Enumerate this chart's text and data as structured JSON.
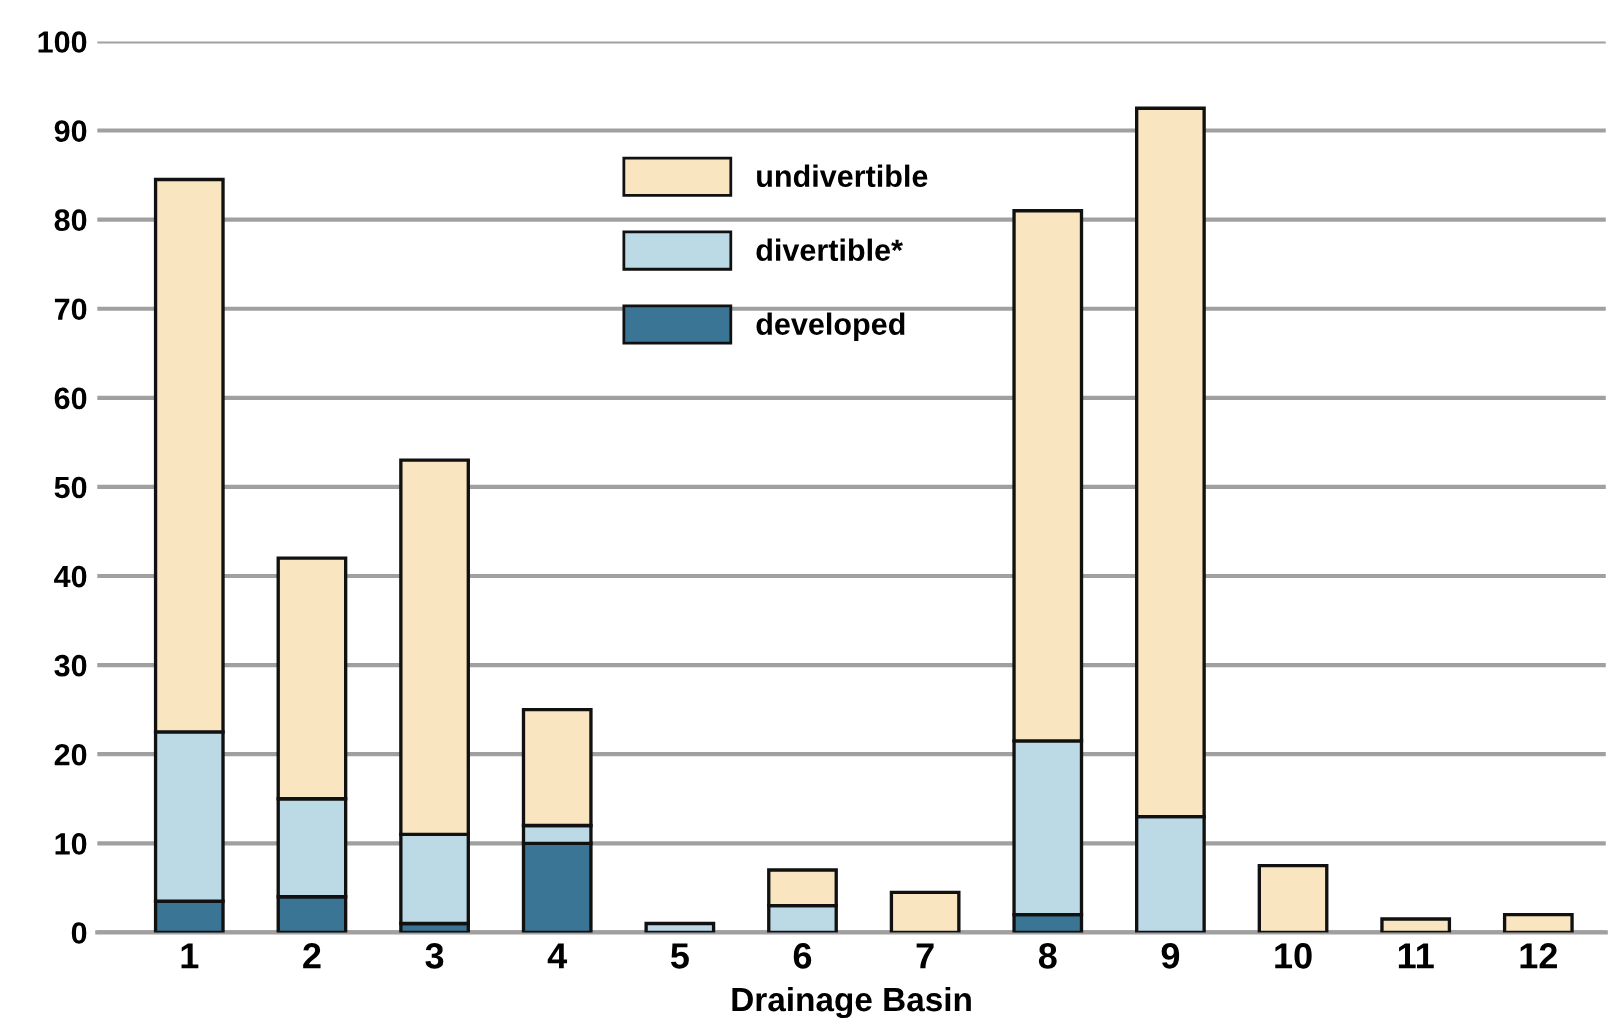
{
  "chart_data": {
    "type": "bar",
    "stacked": true,
    "xlabel": "Drainage Basin",
    "categories": [
      "1",
      "2",
      "3",
      "4",
      "5",
      "6",
      "7",
      "8",
      "9",
      "10",
      "11",
      "12"
    ],
    "series": [
      {
        "name": "developed",
        "color": "#3b7595",
        "values": [
          3.5,
          4,
          1,
          10,
          null,
          null,
          null,
          2,
          null,
          null,
          null,
          null
        ]
      },
      {
        "name": "divertible*",
        "color": "#bcd9e6",
        "values": [
          19,
          11,
          10,
          2,
          1,
          3,
          null,
          19.5,
          13,
          null,
          null,
          null
        ]
      },
      {
        "name": "undivertible",
        "color": "#f9e6c0",
        "values": [
          62,
          27,
          42,
          13,
          null,
          4,
          4.5,
          59.5,
          79.5,
          7.5,
          1.5,
          2
        ]
      }
    ],
    "ylim": [
      0,
      100
    ],
    "yticks": [
      0,
      10,
      20,
      30,
      40,
      50,
      60,
      70,
      80,
      90,
      100
    ],
    "grid": "y",
    "legend": "top"
  }
}
